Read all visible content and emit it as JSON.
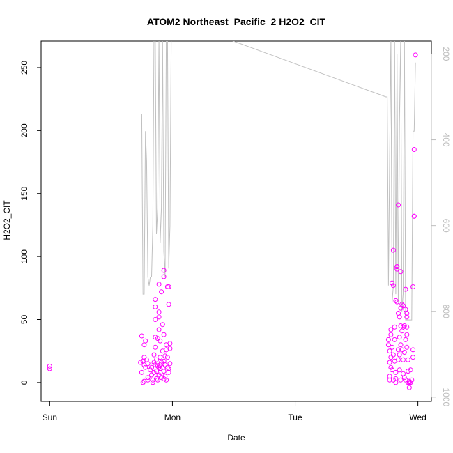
{
  "chart_data": {
    "type": "scatter",
    "title": "ATOM2 Northeast_Pacific_2 H2O2_CIT",
    "xlabel": "Date",
    "ylabel": "H2O2_CIT",
    "x_tick_labels": [
      "Sun",
      "Mon",
      "Tue",
      "Wed"
    ],
    "y_ticks": [
      0,
      50,
      100,
      150,
      200,
      250
    ],
    "ylim": [
      -15,
      271
    ],
    "xlim_days": [
      -0.07,
      3.11
    ],
    "secondary_axis": {
      "side": "right",
      "reversed": true,
      "ticks": [
        200,
        400,
        600,
        800,
        1000
      ],
      "range": [
        170,
        1010
      ],
      "color": "#bdbdbd"
    },
    "colors": {
      "points": "#ff00ff",
      "line": "#c0c0c0",
      "axis": "#000000",
      "secondary": "#bdbdbd"
    },
    "series": [
      {
        "kind": "points",
        "points": [
          [
            0.0,
            13
          ],
          [
            0.0,
            11
          ],
          [
            0.75,
            37
          ],
          [
            0.74,
            16
          ],
          [
            0.76,
            17
          ],
          [
            0.77,
            14
          ],
          [
            0.77,
            20
          ],
          [
            0.77,
            30
          ],
          [
            0.78,
            33
          ],
          [
            0.75,
            8
          ],
          [
            0.76,
            0
          ],
          [
            0.77,
            1
          ],
          [
            0.78,
            12
          ],
          [
            0.79,
            18
          ],
          [
            0.8,
            4
          ],
          [
            0.8,
            15
          ],
          [
            0.8,
            2
          ],
          [
            0.82,
            10
          ],
          [
            0.83,
            6
          ],
          [
            0.83,
            12
          ],
          [
            0.84,
            0
          ],
          [
            0.84,
            2
          ],
          [
            0.85,
            8
          ],
          [
            0.85,
            16
          ],
          [
            0.85,
            22
          ],
          [
            0.86,
            14
          ],
          [
            0.86,
            28
          ],
          [
            0.86,
            36
          ],
          [
            0.86,
            50
          ],
          [
            0.86,
            60
          ],
          [
            0.86,
            66
          ],
          [
            0.87,
            3
          ],
          [
            0.87,
            9
          ],
          [
            0.87,
            18
          ],
          [
            0.88,
            2
          ],
          [
            0.88,
            13
          ],
          [
            0.88,
            35
          ],
          [
            0.89,
            6
          ],
          [
            0.89,
            12
          ],
          [
            0.89,
            42
          ],
          [
            0.89,
            52
          ],
          [
            0.89,
            56
          ],
          [
            0.89,
            78
          ],
          [
            0.9,
            20
          ],
          [
            0.9,
            14
          ],
          [
            0.9,
            11
          ],
          [
            0.9,
            8
          ],
          [
            0.9,
            33
          ],
          [
            0.91,
            72
          ],
          [
            0.91,
            16
          ],
          [
            0.91,
            4
          ],
          [
            0.92,
            12
          ],
          [
            0.92,
            25
          ],
          [
            0.92,
            46
          ],
          [
            0.93,
            3
          ],
          [
            0.93,
            17
          ],
          [
            0.93,
            9
          ],
          [
            0.93,
            38
          ],
          [
            0.93,
            84
          ],
          [
            0.93,
            89
          ],
          [
            0.94,
            5
          ],
          [
            0.94,
            14
          ],
          [
            0.94,
            21
          ],
          [
            0.95,
            30
          ],
          [
            0.95,
            2
          ],
          [
            0.95,
            26
          ],
          [
            0.96,
            12
          ],
          [
            0.96,
            76
          ],
          [
            0.96,
            20
          ],
          [
            0.97,
            11
          ],
          [
            0.97,
            76
          ],
          [
            0.97,
            8
          ],
          [
            0.97,
            62
          ],
          [
            0.98,
            15
          ],
          [
            0.98,
            31
          ],
          [
            0.98,
            27
          ],
          [
            2.76,
            34
          ],
          [
            2.76,
            30
          ],
          [
            2.77,
            25
          ],
          [
            2.77,
            16
          ],
          [
            2.77,
            5
          ],
          [
            2.77,
            2
          ],
          [
            2.78,
            42
          ],
          [
            2.78,
            38
          ],
          [
            2.78,
            20
          ],
          [
            2.78,
            12
          ],
          [
            2.79,
            79
          ],
          [
            2.79,
            28
          ],
          [
            2.79,
            10
          ],
          [
            2.8,
            2
          ],
          [
            2.8,
            22
          ],
          [
            2.8,
            77
          ],
          [
            2.8,
            105
          ],
          [
            2.81,
            44
          ],
          [
            2.81,
            34
          ],
          [
            2.81,
            17
          ],
          [
            2.82,
            0
          ],
          [
            2.82,
            3
          ],
          [
            2.82,
            8
          ],
          [
            2.82,
            65
          ],
          [
            2.83,
            92
          ],
          [
            2.83,
            92
          ],
          [
            2.83,
            64
          ],
          [
            2.83,
            90
          ],
          [
            2.84,
            141
          ],
          [
            2.84,
            55
          ],
          [
            2.84,
            26
          ],
          [
            2.84,
            18
          ],
          [
            2.85,
            52
          ],
          [
            2.85,
            36
          ],
          [
            2.85,
            22
          ],
          [
            2.85,
            10
          ],
          [
            2.86,
            88
          ],
          [
            2.86,
            59
          ],
          [
            2.86,
            45
          ],
          [
            2.86,
            30
          ],
          [
            2.86,
            2
          ],
          [
            2.87,
            62
          ],
          [
            2.87,
            41
          ],
          [
            2.87,
            26
          ],
          [
            2.88,
            7
          ],
          [
            2.88,
            44
          ],
          [
            2.88,
            61
          ],
          [
            2.88,
            18
          ],
          [
            2.89,
            4
          ],
          [
            2.89,
            24
          ],
          [
            2.89,
            45
          ],
          [
            2.9,
            2
          ],
          [
            2.9,
            34
          ],
          [
            2.9,
            58
          ],
          [
            2.9,
            74
          ],
          [
            2.91,
            55
          ],
          [
            2.91,
            52
          ],
          [
            2.91,
            44
          ],
          [
            2.91,
            38
          ],
          [
            2.91,
            28
          ],
          [
            2.92,
            18
          ],
          [
            2.92,
            9
          ],
          [
            2.92,
            0
          ],
          [
            2.93,
            0
          ],
          [
            2.93,
            -4
          ],
          [
            2.93,
            1
          ],
          [
            2.94,
            0
          ],
          [
            2.94,
            10
          ],
          [
            2.95,
            2
          ],
          [
            2.96,
            26
          ],
          [
            2.96,
            20
          ],
          [
            2.96,
            76
          ],
          [
            2.97,
            185
          ],
          [
            2.97,
            132
          ],
          [
            2.97,
            132
          ],
          [
            2.98,
            260
          ]
        ]
      },
      {
        "kind": "line",
        "axis": "secondary",
        "points": [
          [
            0.75,
            340
          ],
          [
            0.76,
            760
          ],
          [
            0.77,
            760
          ],
          [
            0.78,
            380
          ],
          [
            0.79,
            450
          ],
          [
            0.8,
            720
          ],
          [
            0.81,
            740
          ],
          [
            0.82,
            720
          ],
          [
            0.83,
            720
          ],
          [
            0.84,
            600
          ],
          [
            0.85,
            160
          ],
          [
            0.86,
            160
          ],
          [
            0.87,
            620
          ],
          [
            0.88,
            560
          ],
          [
            0.89,
            160
          ],
          [
            0.9,
            640
          ],
          [
            0.91,
            560
          ],
          [
            0.92,
            170
          ],
          [
            0.93,
            660
          ],
          [
            0.94,
            720
          ],
          [
            0.95,
            170
          ],
          [
            0.96,
            170
          ],
          [
            0.97,
            700
          ],
          [
            0.98,
            600
          ],
          [
            0.99,
            160
          ],
          [
            1.4,
            160
          ],
          [
            2.74,
            300
          ],
          [
            2.75,
            300
          ],
          [
            2.76,
            740
          ],
          [
            2.77,
            440
          ],
          [
            2.78,
            160
          ],
          [
            2.79,
            780
          ],
          [
            2.8,
            740
          ],
          [
            2.81,
            160
          ],
          [
            2.82,
            760
          ],
          [
            2.83,
            200
          ],
          [
            2.84,
            780
          ],
          [
            2.85,
            360
          ],
          [
            2.86,
            160
          ],
          [
            2.87,
            800
          ],
          [
            2.88,
            760
          ],
          [
            2.89,
            160
          ],
          [
            2.9,
            820
          ],
          [
            2.91,
            820
          ],
          [
            2.92,
            820
          ],
          [
            2.93,
            820
          ],
          [
            2.94,
            820
          ],
          [
            2.95,
            820
          ],
          [
            2.96,
            380
          ],
          [
            2.97,
            380
          ],
          [
            2.98,
            220
          ]
        ]
      }
    ]
  }
}
